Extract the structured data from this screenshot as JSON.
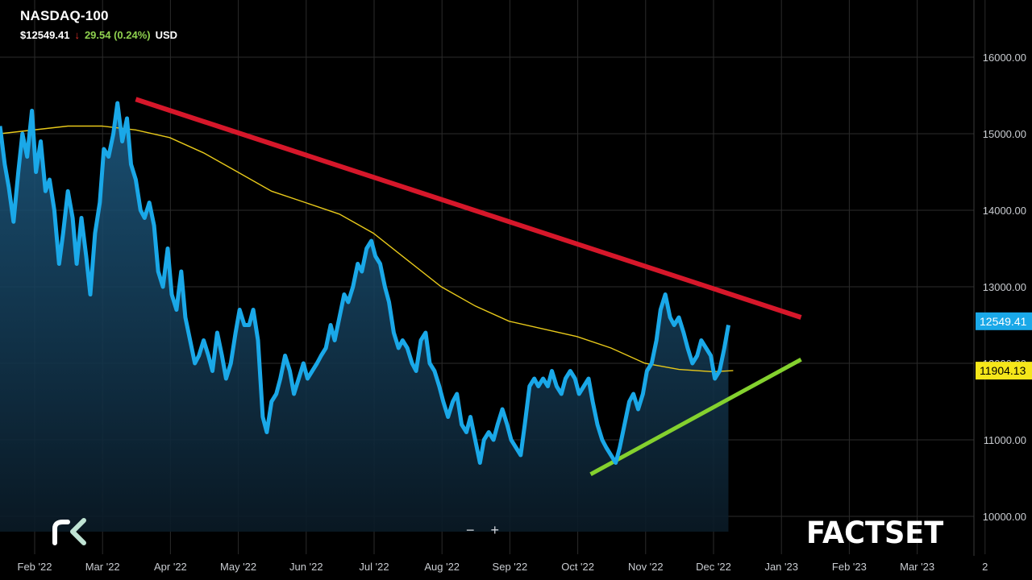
{
  "header": {
    "ticker": "NASDAQ-100",
    "price": "$12549.41",
    "change_arrow": "↓",
    "change": "29.54 (0.24%)",
    "currency": "USD"
  },
  "colors": {
    "price_line": "#1aa8e8",
    "price_label_bg": "#1aa8e8",
    "moving_average": "#e8c91a",
    "ma_label_bg": "#f5e61a",
    "resistance_line": "#d6172a",
    "support_line": "#84d12e",
    "change_positive": "#8fd14f",
    "change_arrow": "#e0302a",
    "gridline": "#2b2b2b",
    "axis_text": "#c9ccd1"
  },
  "controls": {
    "zoom_out": "−",
    "zoom_in": "+"
  },
  "branding": {
    "left_logo_icon": "rk-logo-icon",
    "right_logo": "FACTSET"
  },
  "chart_data": {
    "type": "line",
    "title": "NASDAQ-100",
    "ylim": [
      9800,
      16600
    ],
    "y_ticks": [
      10000,
      11000,
      12000,
      13000,
      14000,
      15000,
      16000
    ],
    "y_tick_labels": [
      "10000.00",
      "11000.00",
      "12000.00",
      "13000.00",
      "14000.00",
      "15000.00",
      "16000.00"
    ],
    "x_labels": [
      "Feb '22",
      "Mar '22",
      "Apr '22",
      "May '22",
      "Jun '22",
      "Jul '22",
      "Aug '22",
      "Sep '22",
      "Oct '22",
      "Nov '22",
      "Dec '22",
      "Jan '23",
      "Feb '23",
      "Mar '23",
      "2"
    ],
    "x_label_months": [
      1,
      2,
      3,
      4,
      5,
      6,
      7,
      8,
      9,
      10,
      11,
      12,
      13,
      14,
      15
    ],
    "grid": true,
    "series": [
      {
        "type": "price",
        "points": [
          [
            0.0,
            15100
          ],
          [
            0.07,
            14600
          ],
          [
            0.13,
            14300
          ],
          [
            0.2,
            13850
          ],
          [
            0.27,
            14500
          ],
          [
            0.33,
            15000
          ],
          [
            0.4,
            14700
          ],
          [
            0.47,
            15300
          ],
          [
            0.53,
            14500
          ],
          [
            0.6,
            14900
          ],
          [
            0.67,
            14250
          ],
          [
            0.73,
            14400
          ],
          [
            0.8,
            14000
          ],
          [
            0.87,
            13300
          ],
          [
            0.93,
            13700
          ],
          [
            1.0,
            14250
          ],
          [
            1.07,
            13900
          ],
          [
            1.13,
            13300
          ],
          [
            1.2,
            13900
          ],
          [
            1.27,
            13400
          ],
          [
            1.33,
            12900
          ],
          [
            1.4,
            13700
          ],
          [
            1.47,
            14100
          ],
          [
            1.53,
            14800
          ],
          [
            1.6,
            14700
          ],
          [
            1.67,
            15000
          ],
          [
            1.73,
            15400
          ],
          [
            1.8,
            14900
          ],
          [
            1.87,
            15200
          ],
          [
            1.93,
            14600
          ],
          [
            2.0,
            14400
          ],
          [
            2.07,
            14000
          ],
          [
            2.13,
            13900
          ],
          [
            2.2,
            14100
          ],
          [
            2.27,
            13800
          ],
          [
            2.33,
            13200
          ],
          [
            2.4,
            13000
          ],
          [
            2.47,
            13500
          ],
          [
            2.53,
            12900
          ],
          [
            2.6,
            12700
          ],
          [
            2.67,
            13200
          ],
          [
            2.73,
            12600
          ],
          [
            2.8,
            12300
          ],
          [
            2.87,
            12000
          ],
          [
            2.93,
            12100
          ],
          [
            3.0,
            12300
          ],
          [
            3.07,
            12100
          ],
          [
            3.13,
            11900
          ],
          [
            3.2,
            12400
          ],
          [
            3.27,
            12100
          ],
          [
            3.33,
            11800
          ],
          [
            3.4,
            12000
          ],
          [
            3.47,
            12400
          ],
          [
            3.53,
            12700
          ],
          [
            3.6,
            12500
          ],
          [
            3.67,
            12500
          ],
          [
            3.73,
            12700
          ],
          [
            3.8,
            12300
          ],
          [
            3.87,
            11300
          ],
          [
            3.93,
            11100
          ],
          [
            4.0,
            11500
          ],
          [
            4.07,
            11600
          ],
          [
            4.13,
            11800
          ],
          [
            4.2,
            12100
          ],
          [
            4.27,
            11900
          ],
          [
            4.33,
            11600
          ],
          [
            4.4,
            11800
          ],
          [
            4.47,
            12000
          ],
          [
            4.53,
            11800
          ],
          [
            4.6,
            11900
          ],
          [
            4.67,
            12000
          ],
          [
            4.73,
            12100
          ],
          [
            4.8,
            12200
          ],
          [
            4.87,
            12500
          ],
          [
            4.93,
            12300
          ],
          [
            5.0,
            12600
          ],
          [
            5.07,
            12900
          ],
          [
            5.13,
            12800
          ],
          [
            5.2,
            13000
          ],
          [
            5.27,
            13300
          ],
          [
            5.33,
            13200
          ],
          [
            5.4,
            13500
          ],
          [
            5.47,
            13600
          ],
          [
            5.53,
            13400
          ],
          [
            5.6,
            13300
          ],
          [
            5.67,
            13000
          ],
          [
            5.73,
            12800
          ],
          [
            5.8,
            12400
          ],
          [
            5.87,
            12200
          ],
          [
            5.93,
            12300
          ],
          [
            6.0,
            12200
          ],
          [
            6.07,
            12000
          ],
          [
            6.13,
            11900
          ],
          [
            6.2,
            12300
          ],
          [
            6.27,
            12400
          ],
          [
            6.33,
            12000
          ],
          [
            6.4,
            11900
          ],
          [
            6.47,
            11700
          ],
          [
            6.53,
            11500
          ],
          [
            6.6,
            11300
          ],
          [
            6.67,
            11500
          ],
          [
            6.73,
            11600
          ],
          [
            6.8,
            11200
          ],
          [
            6.87,
            11100
          ],
          [
            6.93,
            11300
          ],
          [
            7.0,
            11000
          ],
          [
            7.07,
            10700
          ],
          [
            7.13,
            11000
          ],
          [
            7.2,
            11100
          ],
          [
            7.27,
            11000
          ],
          [
            7.33,
            11200
          ],
          [
            7.4,
            11400
          ],
          [
            7.47,
            11200
          ],
          [
            7.53,
            11000
          ],
          [
            7.6,
            10900
          ],
          [
            7.67,
            10800
          ],
          [
            7.73,
            11200
          ],
          [
            7.8,
            11700
          ],
          [
            7.87,
            11800
          ],
          [
            7.93,
            11700
          ],
          [
            8.0,
            11800
          ],
          [
            8.07,
            11700
          ],
          [
            8.13,
            11900
          ],
          [
            8.2,
            11700
          ],
          [
            8.27,
            11600
          ],
          [
            8.33,
            11800
          ],
          [
            8.4,
            11900
          ],
          [
            8.47,
            11800
          ],
          [
            8.53,
            11600
          ],
          [
            8.6,
            11700
          ],
          [
            8.67,
            11800
          ],
          [
            8.73,
            11500
          ],
          [
            8.8,
            11200
          ],
          [
            8.87,
            11000
          ],
          [
            8.93,
            10900
          ],
          [
            9.0,
            10800
          ],
          [
            9.07,
            10700
          ],
          [
            9.13,
            10900
          ],
          [
            9.2,
            11200
          ],
          [
            9.27,
            11500
          ],
          [
            9.33,
            11600
          ],
          [
            9.4,
            11400
          ],
          [
            9.47,
            11600
          ],
          [
            9.53,
            11900
          ],
          [
            9.6,
            12000
          ],
          [
            9.67,
            12300
          ],
          [
            9.73,
            12700
          ],
          [
            9.8,
            12900
          ],
          [
            9.87,
            12600
          ],
          [
            9.93,
            12500
          ],
          [
            10.0,
            12600
          ],
          [
            10.07,
            12400
          ],
          [
            10.13,
            12200
          ],
          [
            10.2,
            12000
          ],
          [
            10.27,
            12100
          ],
          [
            10.33,
            12300
          ],
          [
            10.4,
            12200
          ],
          [
            10.47,
            12100
          ],
          [
            10.53,
            11800
          ],
          [
            10.6,
            11900
          ],
          [
            10.67,
            12200
          ],
          [
            10.73,
            12500
          ]
        ]
      },
      {
        "type": "moving_average",
        "label": "11904.13",
        "points": [
          [
            0.0,
            15000
          ],
          [
            1.0,
            15100
          ],
          [
            1.5,
            15100
          ],
          [
            2.0,
            15050
          ],
          [
            2.5,
            14950
          ],
          [
            3.0,
            14750
          ],
          [
            3.5,
            14500
          ],
          [
            4.0,
            14250
          ],
          [
            4.5,
            14100
          ],
          [
            5.0,
            13950
          ],
          [
            5.5,
            13700
          ],
          [
            6.0,
            13350
          ],
          [
            6.5,
            13000
          ],
          [
            7.0,
            12750
          ],
          [
            7.5,
            12550
          ],
          [
            8.0,
            12450
          ],
          [
            8.5,
            12350
          ],
          [
            9.0,
            12200
          ],
          [
            9.5,
            12000
          ],
          [
            10.0,
            11920
          ],
          [
            10.5,
            11890
          ],
          [
            10.8,
            11904
          ]
        ]
      }
    ],
    "price_label": "12549.41",
    "annotations": [
      {
        "type": "resistance_trendline",
        "from": [
          2.0,
          15450
        ],
        "to": [
          11.8,
          12600
        ]
      },
      {
        "type": "support_trendline",
        "from": [
          8.7,
          10550
        ],
        "to": [
          11.8,
          12050
        ]
      }
    ]
  }
}
